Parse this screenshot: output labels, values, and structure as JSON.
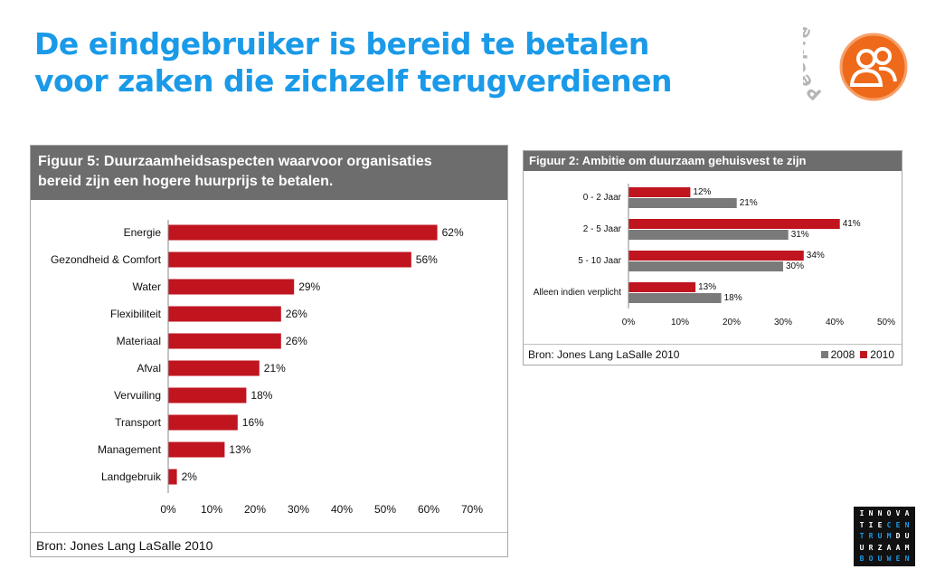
{
  "title_lines": [
    "De eindgebruiker is bereid te betalen",
    "voor zaken die zichzelf terugverdienen"
  ],
  "badge": {
    "text": "People",
    "icon": "people-group-icon",
    "color": "#ee6a1a"
  },
  "colors": {
    "title": "#1a9ae8",
    "bar_red": "#c0151f",
    "bar_gray": "#7a7a7a",
    "header_gray": "#6d6d6d"
  },
  "fig5": {
    "header_lines": [
      "Figuur 5: Duurzaamheidsaspecten waarvoor organisaties",
      "bereid zijn een hogere huurprijs te betalen."
    ],
    "source": "Bron: Jones Lang LaSalle 2010"
  },
  "fig2": {
    "header": "Figuur 2: Ambitie om duurzaam gehuisvest te zijn",
    "source": "Bron: Jones Lang LaSalle 2010"
  },
  "innova_logo": [
    [
      "I",
      "N",
      "N",
      "O",
      "V",
      "A"
    ],
    [
      "T",
      "I",
      "E",
      "C",
      "E",
      "N"
    ],
    [
      "T",
      "R",
      "U",
      "M",
      "D",
      "U"
    ],
    [
      "U",
      "R",
      "Z",
      "A",
      "A",
      "M"
    ],
    [
      "B",
      "O",
      "U",
      "W",
      "E",
      "N"
    ]
  ],
  "chart_data": [
    {
      "type": "bar",
      "orientation": "horizontal",
      "categories": [
        "Energie",
        "Gezondheid & Comfort",
        "Water",
        "Flexibiliteit",
        "Materiaal",
        "Afval",
        "Vervuiling",
        "Transport",
        "Management",
        "Landgebruik"
      ],
      "values": [
        62,
        56,
        29,
        26,
        26,
        21,
        18,
        16,
        13,
        2
      ],
      "data_labels": [
        "62%",
        "56%",
        "29%",
        "26%",
        "26%",
        "21%",
        "18%",
        "16%",
        "13%",
        "2%"
      ],
      "xlim": [
        0,
        70
      ],
      "ticks": [
        "0%",
        "10%",
        "20%",
        "30%",
        "40%",
        "50%",
        "60%",
        "70%"
      ],
      "grid": false,
      "color": "#c0151f"
    },
    {
      "type": "bar",
      "orientation": "horizontal",
      "categories": [
        "0 - 2 Jaar",
        "2 - 5 Jaar",
        "5 - 10 Jaar",
        "Alleen indien verplicht"
      ],
      "series": [
        {
          "name": "2010",
          "values": [
            12,
            41,
            34,
            13
          ],
          "labels": [
            "12%",
            "41%",
            "34%",
            "13%"
          ],
          "color": "#c0151f"
        },
        {
          "name": "2008",
          "values": [
            21,
            31,
            30,
            18
          ],
          "labels": [
            "21%",
            "31%",
            "30%",
            "18%"
          ],
          "color": "#7a7a7a"
        }
      ],
      "xlim": [
        0,
        50
      ],
      "ticks": [
        "0%",
        "10%",
        "20%",
        "30%",
        "40%",
        "50%"
      ],
      "legend": "bottom-right",
      "legend_order": [
        "2008",
        "2010"
      ],
      "grid": false
    }
  ]
}
